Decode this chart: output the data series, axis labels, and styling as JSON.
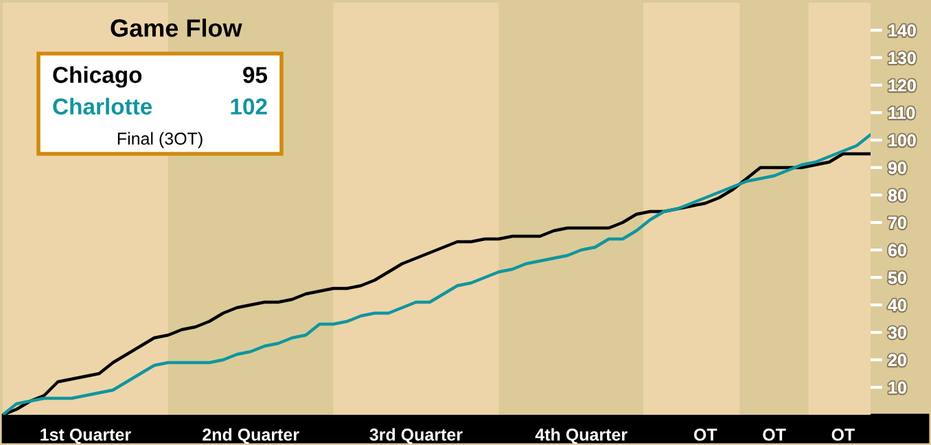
{
  "chart_data": {
    "type": "line",
    "title": "Game Flow",
    "categories": [
      null,
      null,
      null,
      null,
      null,
      null,
      "1st Quarter",
      null,
      null,
      null,
      null,
      null,
      null,
      null,
      null,
      null,
      null,
      null,
      "2nd Quarter",
      null,
      null,
      null,
      null,
      null,
      null,
      null,
      null,
      null,
      null,
      null,
      "3rd Quarter",
      null,
      null,
      null,
      null,
      null,
      null,
      null,
      null,
      null,
      null,
      null,
      "4th Quarter",
      null,
      null,
      null,
      null,
      null,
      null,
      null,
      null,
      "OT",
      null,
      null,
      null,
      null,
      "OT",
      null,
      null,
      null,
      null,
      "OT",
      null,
      null
    ],
    "ylim": [
      0,
      150
    ],
    "yticks": [
      10,
      20,
      30,
      40,
      50,
      60,
      70,
      80,
      90,
      100,
      110,
      120,
      130,
      140
    ],
    "grid": false,
    "legend": "top left",
    "marker": "none",
    "line_style": "solid",
    "annotations": [
      "95",
      "102",
      "Final (3OT)"
    ],
    "series": [
      {
        "name": "Chicago",
        "color": "#000000",
        "values": [
          0,
          2,
          5,
          7,
          12,
          13,
          14,
          15,
          19,
          22,
          25,
          28,
          29,
          31,
          32,
          34,
          37,
          39,
          40,
          41,
          41,
          42,
          44,
          45,
          46,
          46,
          47,
          49,
          52,
          55,
          57,
          59,
          61,
          63,
          63,
          64,
          64,
          65,
          65,
          65,
          67,
          68,
          68,
          68,
          68,
          70,
          73,
          74,
          74,
          75,
          76,
          77,
          79,
          82,
          86,
          90,
          90,
          90,
          90,
          91,
          92,
          95,
          95,
          95
        ]
      },
      {
        "name": "Charlotte",
        "color": "#11959f",
        "values": [
          0,
          4,
          5,
          6,
          6,
          6,
          7,
          8,
          9,
          12,
          15,
          18,
          19,
          19,
          19,
          19,
          20,
          22,
          23,
          25,
          26,
          28,
          29,
          33,
          33,
          34,
          36,
          37,
          37,
          39,
          41,
          41,
          44,
          47,
          48,
          50,
          52,
          53,
          55,
          56,
          57,
          58,
          60,
          61,
          64,
          64,
          67,
          71,
          74,
          75,
          77,
          79,
          81,
          83,
          85,
          86,
          87,
          89,
          91,
          92,
          94,
          96,
          98,
          102
        ]
      }
    ]
  }
}
